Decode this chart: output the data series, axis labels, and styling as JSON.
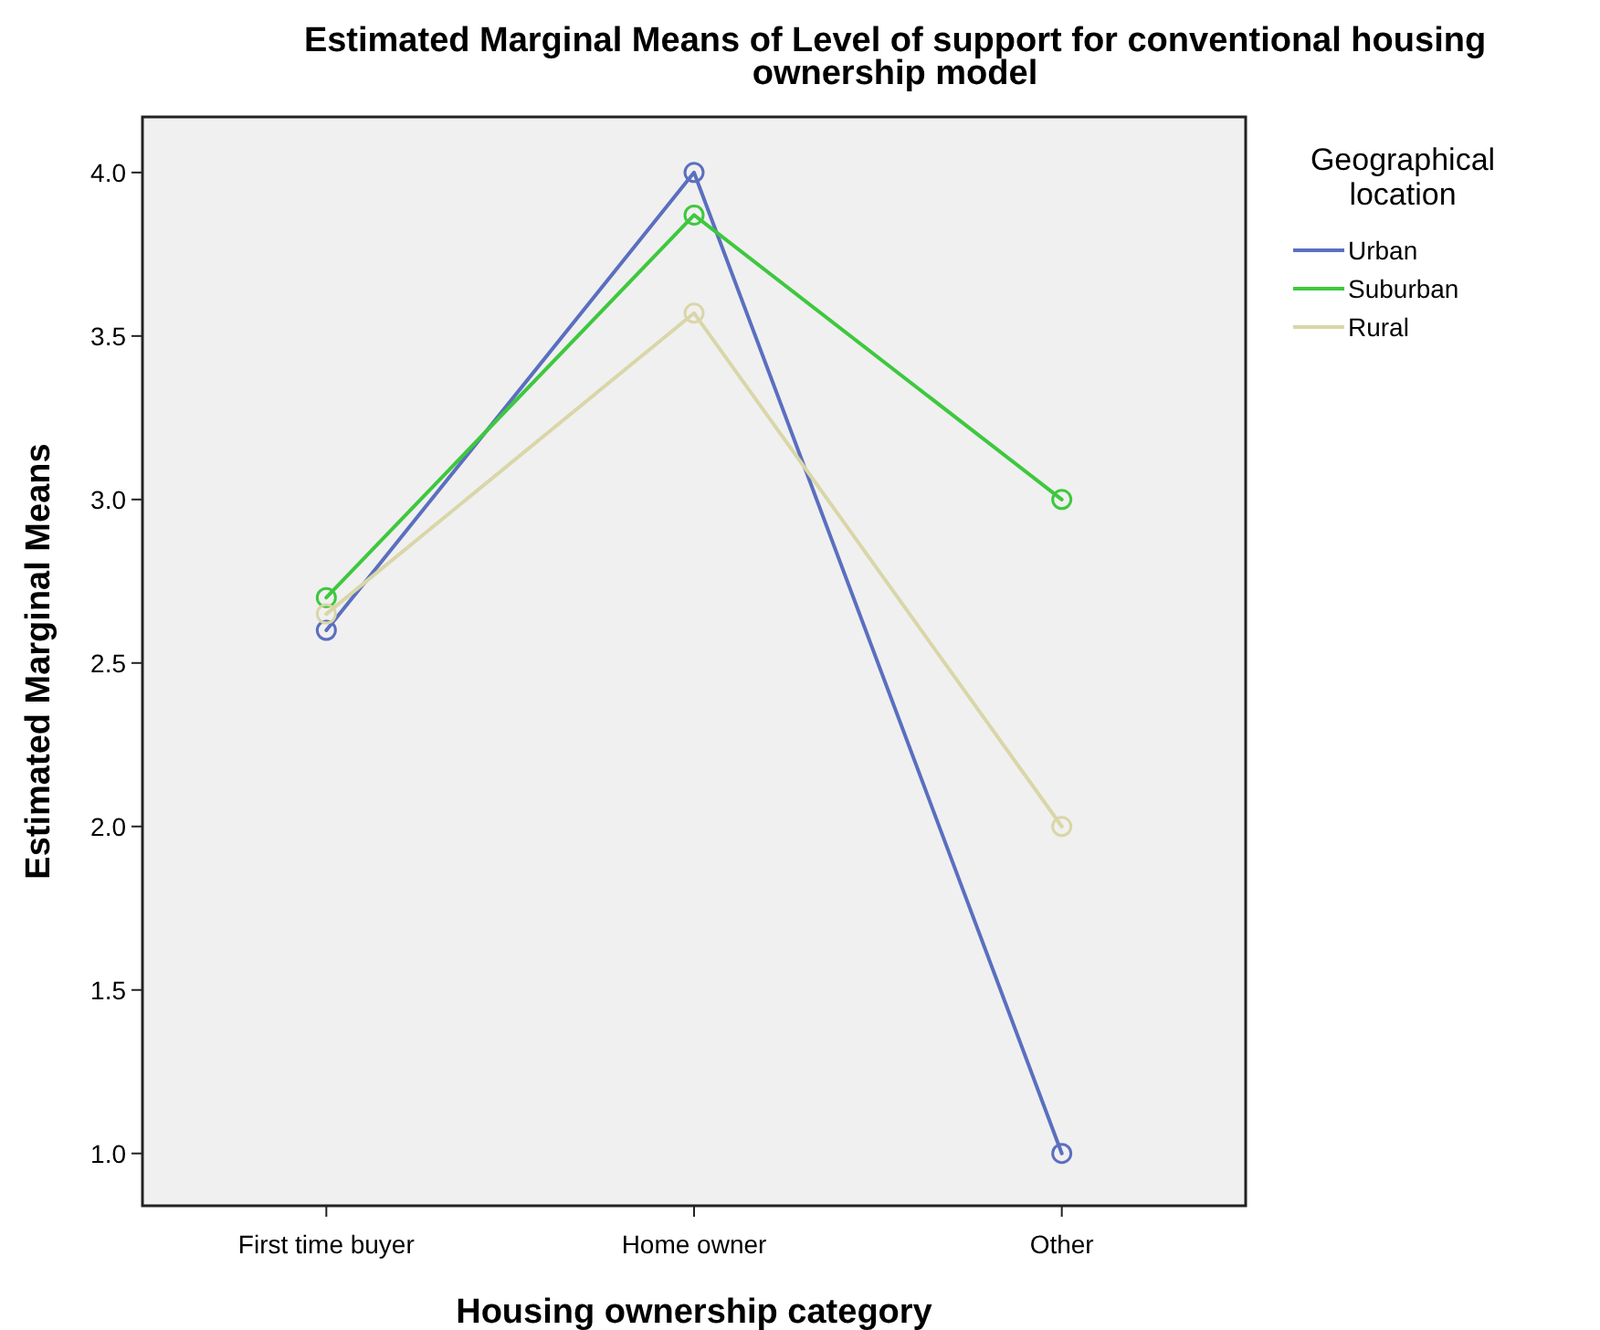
{
  "chart_data": {
    "type": "line",
    "title": "Estimated Marginal Means of Level of support for conventional housing ownership model",
    "xlabel": "Housing ownership category",
    "ylabel": "Estimated Marginal Means",
    "legend_title": "Geographical location",
    "categories": [
      "First time buyer",
      "Home owner",
      "Other"
    ],
    "series": [
      {
        "name": "Urban",
        "color": "#5b6fc0",
        "values": [
          2.6,
          4.0,
          1.0
        ]
      },
      {
        "name": "Suburban",
        "color": "#3ec83e",
        "values": [
          2.7,
          3.87,
          3.0
        ]
      },
      {
        "name": "Rural",
        "color": "#d9d6a8",
        "values": [
          2.65,
          3.57,
          2.0
        ]
      }
    ],
    "ylim": [
      0.84,
      4.17
    ],
    "yticks": [
      {
        "value": 1,
        "label": "1.0"
      },
      {
        "value": 1.5,
        "label": "1.5"
      },
      {
        "value": 2,
        "label": "2.0"
      },
      {
        "value": 2.5,
        "label": "2.5"
      },
      {
        "value": 3,
        "label": "3.0"
      },
      {
        "value": 3.5,
        "label": "3.5"
      },
      {
        "value": 4,
        "label": "4.0"
      }
    ],
    "grid": false,
    "legend": "right",
    "marker": "circle",
    "line_style": "solid"
  }
}
